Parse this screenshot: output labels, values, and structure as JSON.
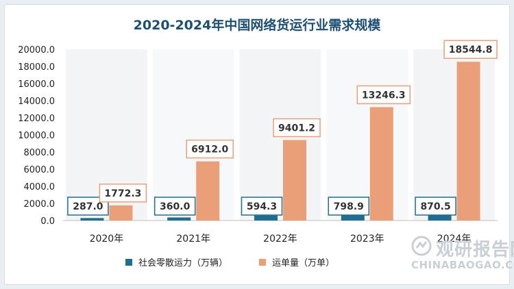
{
  "chart_data": {
    "type": "bar",
    "title": "2020-2024年中国网络货运行业需求规模",
    "categories": [
      "2020年",
      "2021年",
      "2022年",
      "2023年",
      "2024年"
    ],
    "series": [
      {
        "name": "社会零散运力（万辆）",
        "color": "#1f6d8f",
        "values": [
          287.0,
          360.0,
          594.3,
          798.9,
          870.5
        ]
      },
      {
        "name": "运单量（万单）",
        "color": "#ea9f79",
        "values": [
          1772.3,
          6912.0,
          9401.2,
          13246.3,
          18544.8
        ]
      }
    ],
    "ylim": [
      0,
      20000
    ],
    "yticks": [
      0,
      2000,
      4000,
      6000,
      8000,
      10000,
      12000,
      14000,
      16000,
      18000,
      20000
    ],
    "grid": false,
    "legend": "bottom"
  },
  "watermark": {
    "name": "观研报告网",
    "url": "CHINABAOGAO.COM"
  }
}
